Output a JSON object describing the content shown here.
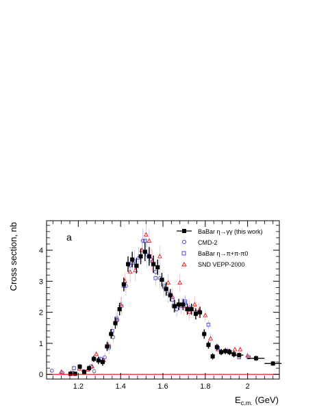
{
  "chart_data": {
    "type": "scatter",
    "panel_label": "a",
    "xlabel": "E_c.m. (GeV)",
    "xlabel_main": "E",
    "xlabel_sub": "c.m.",
    "xlabel_unit": " (GeV)",
    "ylabel": "Cross section, nb",
    "xlim": [
      1.05,
      2.15
    ],
    "ylim": [
      -0.15,
      4.95
    ],
    "xticks": [
      1.2,
      1.4,
      1.6,
      1.8,
      2.0
    ],
    "xtick_labels": [
      "1.2",
      "1.4",
      "1.6",
      "1.8",
      "2"
    ],
    "yticks": [
      0,
      1,
      2,
      3,
      4
    ],
    "ytick_labels": [
      "0",
      "1",
      "2",
      "3",
      "4"
    ],
    "zero_line_color": "#e60000",
    "legend_position": "top-right",
    "series": [
      {
        "name": "BaBar η→γγ (this work)",
        "color": "#000000",
        "marker": "filled-square",
        "points": [
          [
            1.163,
            0.02,
            0.05,
            0.01
          ],
          [
            1.185,
            0.02,
            0.05,
            0.01
          ],
          [
            1.207,
            0.25,
            0.08,
            0.01
          ],
          [
            1.228,
            0.08,
            0.05,
            0.01
          ],
          [
            1.251,
            0.2,
            0.08,
            0.01
          ],
          [
            1.273,
            0.5,
            0.1,
            0.01
          ],
          [
            1.295,
            0.45,
            0.12,
            0.01
          ],
          [
            1.315,
            0.4,
            0.12,
            0.01
          ],
          [
            1.336,
            0.9,
            0.15,
            0.01
          ],
          [
            1.355,
            1.3,
            0.15,
            0.01
          ],
          [
            1.375,
            1.65,
            0.18,
            0.01
          ],
          [
            1.395,
            2.1,
            0.2,
            0.01
          ],
          [
            1.415,
            2.9,
            0.22,
            0.01
          ],
          [
            1.435,
            3.55,
            0.25,
            0.01
          ],
          [
            1.455,
            3.7,
            0.25,
            0.01
          ],
          [
            1.475,
            3.5,
            0.25,
            0.01
          ],
          [
            1.495,
            3.8,
            0.25,
            0.01
          ],
          [
            1.515,
            3.95,
            0.3,
            0.01
          ],
          [
            1.535,
            3.8,
            0.3,
            0.01
          ],
          [
            1.555,
            3.55,
            0.28,
            0.01
          ],
          [
            1.575,
            3.45,
            0.25,
            0.01
          ],
          [
            1.595,
            3.05,
            0.22,
            0.01
          ],
          [
            1.615,
            2.75,
            0.22,
            0.01
          ],
          [
            1.635,
            2.55,
            0.2,
            0.01
          ],
          [
            1.655,
            2.2,
            0.2,
            0.01
          ],
          [
            1.675,
            2.25,
            0.18,
            0.01
          ],
          [
            1.695,
            2.25,
            0.18,
            0.01
          ],
          [
            1.715,
            2.1,
            0.18,
            0.01
          ],
          [
            1.735,
            2.1,
            0.18,
            0.01
          ],
          [
            1.755,
            1.95,
            0.18,
            0.01
          ],
          [
            1.775,
            2.0,
            0.18,
            0.01
          ],
          [
            1.795,
            1.3,
            0.15,
            0.01
          ],
          [
            1.815,
            0.95,
            0.12,
            0.01
          ],
          [
            1.835,
            0.58,
            0.1,
            0.01
          ],
          [
            1.855,
            0.88,
            0.1,
            0.01
          ],
          [
            1.875,
            0.72,
            0.1,
            0.01
          ],
          [
            1.895,
            0.75,
            0.1,
            0.01
          ],
          [
            1.915,
            0.72,
            0.1,
            0.01
          ],
          [
            1.935,
            0.65,
            0.1,
            0.01
          ],
          [
            1.96,
            0.62,
            0.08,
            0.02
          ],
          [
            2.04,
            0.52,
            0.08,
            0.04
          ],
          [
            2.12,
            0.35,
            0.06,
            0.04
          ]
        ]
      },
      {
        "name": "CMD-2",
        "color": "#3333cc",
        "marker": "open-circle",
        "points": [
          [
            1.075,
            0.12,
            0.05
          ],
          [
            1.125,
            0.05,
            0.05
          ],
          [
            1.175,
            0.05,
            0.05
          ],
          [
            1.225,
            0.1,
            0.08
          ],
          [
            1.275,
            0.1,
            0.1
          ],
          [
            1.325,
            0.55,
            0.15
          ],
          [
            1.345,
            0.85,
            0.2
          ],
          [
            1.365,
            1.2,
            0.2
          ],
          [
            1.385,
            1.75,
            0.25
          ],
          [
            1.405,
            2.2,
            0.3
          ],
          [
            1.425,
            2.85,
            0.3
          ],
          [
            1.445,
            3.5,
            0.3
          ],
          [
            1.465,
            3.65,
            0.35
          ],
          [
            1.485,
            3.75,
            0.35
          ],
          [
            1.505,
            4.3,
            0.4
          ],
          [
            1.525,
            3.85,
            0.4
          ],
          [
            1.545,
            3.7,
            0.35
          ],
          [
            1.565,
            3.3,
            0.35
          ],
          [
            1.585,
            3.1,
            0.3
          ],
          [
            1.605,
            2.8,
            0.3
          ],
          [
            1.625,
            2.6,
            0.3
          ],
          [
            1.645,
            2.4,
            0.3
          ],
          [
            1.665,
            2.1,
            0.25
          ],
          [
            1.685,
            2.2,
            0.25
          ],
          [
            1.705,
            2.3,
            0.25
          ],
          [
            1.725,
            2.15,
            0.25
          ]
        ]
      },
      {
        "name": "BaBar η→π+π-π0",
        "color": "#3333cc",
        "marker": "open-square",
        "points": [
          [
            1.179,
            0.2,
            0.08
          ],
          [
            1.261,
            0.25,
            0.08
          ],
          [
            1.305,
            0.5,
            0.1
          ],
          [
            1.345,
            0.9,
            0.12
          ],
          [
            1.36,
            1.4,
            0.15
          ],
          [
            1.38,
            1.8,
            0.18
          ],
          [
            1.415,
            2.85,
            0.2
          ],
          [
            1.455,
            3.6,
            0.25
          ],
          [
            1.515,
            4.3,
            0.25
          ],
          [
            1.565,
            3.1,
            0.25
          ],
          [
            1.605,
            2.85,
            0.2
          ],
          [
            1.65,
            2.2,
            0.2
          ],
          [
            1.705,
            2.35,
            0.2
          ],
          [
            1.755,
            2.0,
            0.2
          ],
          [
            1.815,
            1.6,
            0.15
          ],
          [
            1.86,
            0.85,
            0.12
          ],
          [
            1.91,
            0.75,
            0.1
          ],
          [
            1.96,
            0.55,
            0.08
          ],
          [
            2.005,
            0.55,
            0.08
          ]
        ]
      },
      {
        "name": "SND VEPP-2000",
        "color": "#e60000",
        "marker": "open-triangle",
        "points": [
          [
            1.12,
            0.08,
            0.05
          ],
          [
            1.165,
            0.05,
            0.05
          ],
          [
            1.205,
            0.18,
            0.08
          ],
          [
            1.245,
            0.15,
            0.08
          ],
          [
            1.265,
            0.25,
            0.1
          ],
          [
            1.285,
            0.65,
            0.12
          ],
          [
            1.32,
            0.45,
            0.12
          ],
          [
            1.34,
            0.95,
            0.15
          ],
          [
            1.38,
            1.75,
            0.2
          ],
          [
            1.4,
            2.25,
            0.25
          ],
          [
            1.42,
            3.0,
            0.3
          ],
          [
            1.445,
            3.3,
            0.35
          ],
          [
            1.47,
            3.35,
            0.35
          ],
          [
            1.5,
            4.0,
            0.4
          ],
          [
            1.52,
            4.5,
            0.4
          ],
          [
            1.535,
            4.3,
            0.4
          ],
          [
            1.55,
            3.65,
            0.35
          ],
          [
            1.585,
            3.8,
            0.35
          ],
          [
            1.625,
            2.95,
            0.3
          ],
          [
            1.645,
            2.5,
            0.3
          ],
          [
            1.68,
            2.95,
            0.3
          ],
          [
            1.7,
            2.2,
            0.3
          ],
          [
            1.725,
            2.0,
            0.25
          ],
          [
            1.75,
            2.25,
            0.25
          ],
          [
            1.77,
            2.05,
            0.25
          ],
          [
            1.8,
            1.9,
            0.2
          ],
          [
            1.825,
            1.15,
            0.18
          ],
          [
            1.86,
            0.8,
            0.15
          ],
          [
            1.905,
            0.75,
            0.12
          ],
          [
            1.94,
            0.8,
            0.12
          ],
          [
            1.965,
            0.8,
            0.1
          ],
          [
            2.0,
            0.6,
            0.1
          ],
          [
            2.12,
            0.35,
            0.08
          ]
        ]
      }
    ]
  }
}
